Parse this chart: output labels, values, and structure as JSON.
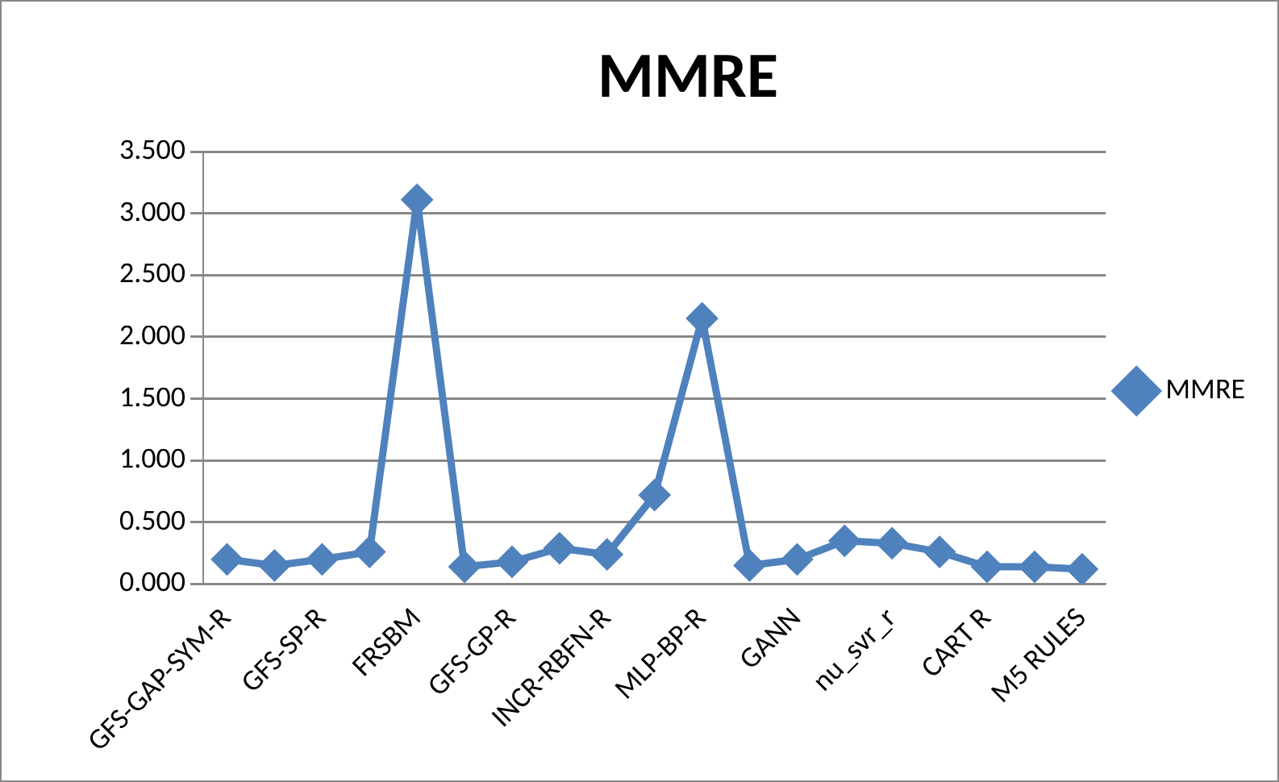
{
  "chart_data": {
    "type": "line",
    "title": "MMRE",
    "categories": [
      "GFS-GAP-SYM-R",
      null,
      "GFS-SP-R",
      null,
      "FRSBM",
      null,
      "GFS-GP-R",
      null,
      "INCR-RBFN-R",
      null,
      "MLP-BP-R",
      null,
      "GANN",
      null,
      "nu_svr_r",
      null,
      "CART R",
      null,
      "M5 RULES"
    ],
    "series": [
      {
        "name": "MMRE",
        "color": "#4f81bd",
        "values": [
          0.2,
          0.15,
          0.2,
          0.26,
          3.11,
          0.14,
          0.18,
          0.29,
          0.24,
          0.72,
          2.15,
          0.15,
          0.2,
          0.35,
          0.33,
          0.26,
          0.14,
          0.14,
          0.12
        ]
      }
    ],
    "ylim": [
      0,
      3.5
    ],
    "yticks": [
      {
        "value": 0,
        "label": "0.000"
      },
      {
        "value": 0.5,
        "label": "0.500"
      },
      {
        "value": 1,
        "label": "1.000"
      },
      {
        "value": 1.5,
        "label": "1.500"
      },
      {
        "value": 2,
        "label": "2.000"
      },
      {
        "value": 2.5,
        "label": "2.500"
      },
      {
        "value": 3,
        "label": "3.000"
      },
      {
        "value": 3.5,
        "label": "3.500"
      }
    ],
    "grid": "y",
    "legend": "right",
    "marker": "diamond",
    "line_style": "solid"
  }
}
